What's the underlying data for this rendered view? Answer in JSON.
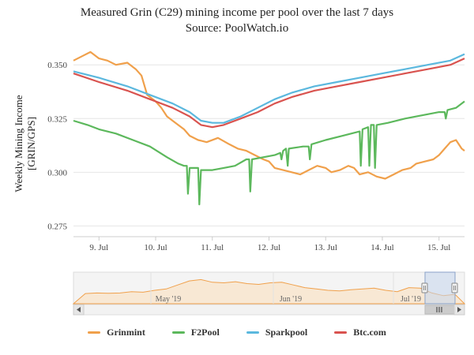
{
  "chart_data": {
    "type": "line",
    "title": "Measured Grin (C29) mining income per pool over the last 7 days",
    "subtitle": "Source: PoolWatch.io",
    "ylabel": "Weekly Mining Income [GRIN/GPS]",
    "xlabel": "",
    "x_ticks": [
      "9. Jul",
      "10. Jul",
      "11. Jul",
      "12. Jul",
      "13. Jul",
      "14. Jul",
      "15. Jul"
    ],
    "y_ticks": [
      "0.275",
      "0.300",
      "0.325",
      "0.350"
    ],
    "ylim": [
      0.27,
      0.36
    ],
    "xlim": [
      8.55,
      15.45
    ],
    "grid": true,
    "legend_position": "bottom",
    "series": [
      {
        "name": "Grinmint",
        "color": "#f0a04b",
        "points": [
          [
            8.55,
            0.352
          ],
          [
            8.7,
            0.354
          ],
          [
            8.85,
            0.356
          ],
          [
            9.0,
            0.353
          ],
          [
            9.15,
            0.352
          ],
          [
            9.3,
            0.35
          ],
          [
            9.5,
            0.351
          ],
          [
            9.65,
            0.348
          ],
          [
            9.75,
            0.345
          ],
          [
            9.85,
            0.336
          ],
          [
            10.0,
            0.333
          ],
          [
            10.1,
            0.33
          ],
          [
            10.2,
            0.326
          ],
          [
            10.35,
            0.323
          ],
          [
            10.5,
            0.32
          ],
          [
            10.6,
            0.317
          ],
          [
            10.75,
            0.315
          ],
          [
            10.9,
            0.314
          ],
          [
            11.1,
            0.316
          ],
          [
            11.3,
            0.313
          ],
          [
            11.45,
            0.311
          ],
          [
            11.6,
            0.31
          ],
          [
            11.75,
            0.308
          ],
          [
            11.9,
            0.306
          ],
          [
            12.0,
            0.305
          ],
          [
            12.1,
            0.302
          ],
          [
            12.25,
            0.301
          ],
          [
            12.4,
            0.3
          ],
          [
            12.55,
            0.299
          ],
          [
            12.7,
            0.301
          ],
          [
            12.85,
            0.303
          ],
          [
            13.0,
            0.302
          ],
          [
            13.1,
            0.3
          ],
          [
            13.25,
            0.301
          ],
          [
            13.4,
            0.303
          ],
          [
            13.5,
            0.302
          ],
          [
            13.6,
            0.299
          ],
          [
            13.75,
            0.3
          ],
          [
            13.9,
            0.298
          ],
          [
            14.05,
            0.297
          ],
          [
            14.2,
            0.299
          ],
          [
            14.35,
            0.301
          ],
          [
            14.5,
            0.302
          ],
          [
            14.6,
            0.304
          ],
          [
            14.75,
            0.305
          ],
          [
            14.9,
            0.306
          ],
          [
            15.0,
            0.308
          ],
          [
            15.1,
            0.311
          ],
          [
            15.2,
            0.314
          ],
          [
            15.3,
            0.315
          ],
          [
            15.4,
            0.311
          ],
          [
            15.45,
            0.31
          ]
        ]
      },
      {
        "name": "F2Pool",
        "color": "#5cb85c",
        "points": [
          [
            8.55,
            0.324
          ],
          [
            8.8,
            0.322
          ],
          [
            9.0,
            0.32
          ],
          [
            9.3,
            0.318
          ],
          [
            9.6,
            0.315
          ],
          [
            9.9,
            0.312
          ],
          [
            10.2,
            0.307
          ],
          [
            10.4,
            0.304
          ],
          [
            10.5,
            0.303
          ],
          [
            10.55,
            0.303
          ],
          [
            10.57,
            0.29
          ],
          [
            10.6,
            0.302
          ],
          [
            10.75,
            0.302
          ],
          [
            10.77,
            0.285
          ],
          [
            10.8,
            0.301
          ],
          [
            11.0,
            0.301
          ],
          [
            11.2,
            0.302
          ],
          [
            11.4,
            0.303
          ],
          [
            11.6,
            0.306
          ],
          [
            11.65,
            0.306
          ],
          [
            11.67,
            0.291
          ],
          [
            11.7,
            0.306
          ],
          [
            11.9,
            0.307
          ],
          [
            12.1,
            0.308
          ],
          [
            12.2,
            0.309
          ],
          [
            12.22,
            0.306
          ],
          [
            12.25,
            0.31
          ],
          [
            12.3,
            0.311
          ],
          [
            12.33,
            0.303
          ],
          [
            12.35,
            0.311
          ],
          [
            12.6,
            0.312
          ],
          [
            12.7,
            0.312
          ],
          [
            12.72,
            0.306
          ],
          [
            12.75,
            0.313
          ],
          [
            13.0,
            0.315
          ],
          [
            13.3,
            0.317
          ],
          [
            13.6,
            0.319
          ],
          [
            13.62,
            0.303
          ],
          [
            13.65,
            0.32
          ],
          [
            13.75,
            0.321
          ],
          [
            13.77,
            0.303
          ],
          [
            13.8,
            0.322
          ],
          [
            13.85,
            0.322
          ],
          [
            13.87,
            0.302
          ],
          [
            13.9,
            0.322
          ],
          [
            14.1,
            0.323
          ],
          [
            14.4,
            0.325
          ],
          [
            14.6,
            0.326
          ],
          [
            14.8,
            0.327
          ],
          [
            15.0,
            0.328
          ],
          [
            15.1,
            0.328
          ],
          [
            15.12,
            0.325
          ],
          [
            15.15,
            0.329
          ],
          [
            15.3,
            0.33
          ],
          [
            15.45,
            0.333
          ]
        ]
      },
      {
        "name": "Sparkpool",
        "color": "#5bb8de",
        "points": [
          [
            8.55,
            0.347
          ],
          [
            9.0,
            0.344
          ],
          [
            9.5,
            0.34
          ],
          [
            9.9,
            0.336
          ],
          [
            10.3,
            0.332
          ],
          [
            10.6,
            0.328
          ],
          [
            10.8,
            0.324
          ],
          [
            11.0,
            0.323
          ],
          [
            11.2,
            0.323
          ],
          [
            11.5,
            0.326
          ],
          [
            11.8,
            0.33
          ],
          [
            12.1,
            0.334
          ],
          [
            12.4,
            0.337
          ],
          [
            12.8,
            0.34
          ],
          [
            13.2,
            0.342
          ],
          [
            13.6,
            0.344
          ],
          [
            14.0,
            0.346
          ],
          [
            14.4,
            0.348
          ],
          [
            14.8,
            0.35
          ],
          [
            15.2,
            0.352
          ],
          [
            15.45,
            0.355
          ]
        ]
      },
      {
        "name": "Btc.com",
        "color": "#d9534f",
        "points": [
          [
            8.55,
            0.346
          ],
          [
            9.0,
            0.342
          ],
          [
            9.5,
            0.338
          ],
          [
            9.9,
            0.334
          ],
          [
            10.3,
            0.33
          ],
          [
            10.6,
            0.326
          ],
          [
            10.8,
            0.322
          ],
          [
            11.0,
            0.321
          ],
          [
            11.2,
            0.322
          ],
          [
            11.5,
            0.325
          ],
          [
            11.8,
            0.328
          ],
          [
            12.1,
            0.332
          ],
          [
            12.4,
            0.335
          ],
          [
            12.8,
            0.338
          ],
          [
            13.2,
            0.34
          ],
          [
            13.6,
            0.342
          ],
          [
            14.0,
            0.344
          ],
          [
            14.4,
            0.346
          ],
          [
            14.8,
            0.348
          ],
          [
            15.2,
            0.35
          ],
          [
            15.45,
            0.353
          ]
        ]
      }
    ]
  },
  "navigator": {
    "labels": [
      "May '19",
      "Jun '19",
      "Jul '19"
    ],
    "scroll_icon": "scroll-grip-icon",
    "left_arrow_icon": "arrow-left-icon",
    "right_arrow_icon": "arrow-right-icon"
  }
}
